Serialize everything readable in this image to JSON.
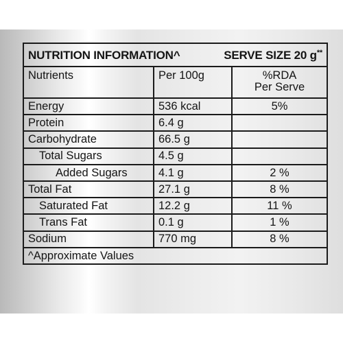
{
  "title": "NUTRITION INFORMATION^",
  "serve_size": "SERVE SIZE 20 g",
  "serve_size_mark": "**",
  "headers": {
    "nutrients": "Nutrients",
    "per100": "Per 100g",
    "rda_line1": "%RDA",
    "rda_line2": "Per Serve"
  },
  "rows": [
    {
      "name": "Energy",
      "per100": "536 kcal",
      "rda": "5%"
    },
    {
      "name": "Protein",
      "per100": "6.4 g",
      "rda": ""
    },
    {
      "name": "Carbohydrate",
      "per100": "66.5 g",
      "rda": ""
    },
    {
      "name": "Total Sugars",
      "per100": "4.5 g",
      "rda": ""
    },
    {
      "name": "Added Sugars",
      "per100": "4.1 g",
      "rda": "2 %"
    },
    {
      "name": "Total Fat",
      "per100": "27.1 g",
      "rda": "8 %"
    },
    {
      "name": "Saturated Fat",
      "per100": "12.2 g",
      "rda": "11 %"
    },
    {
      "name": "Trans Fat",
      "per100": "0.1 g",
      "rda": "1 %"
    },
    {
      "name": "Sodium",
      "per100": "770 mg",
      "rda": "8 %"
    }
  ],
  "footnote": "^Approximate Values"
}
